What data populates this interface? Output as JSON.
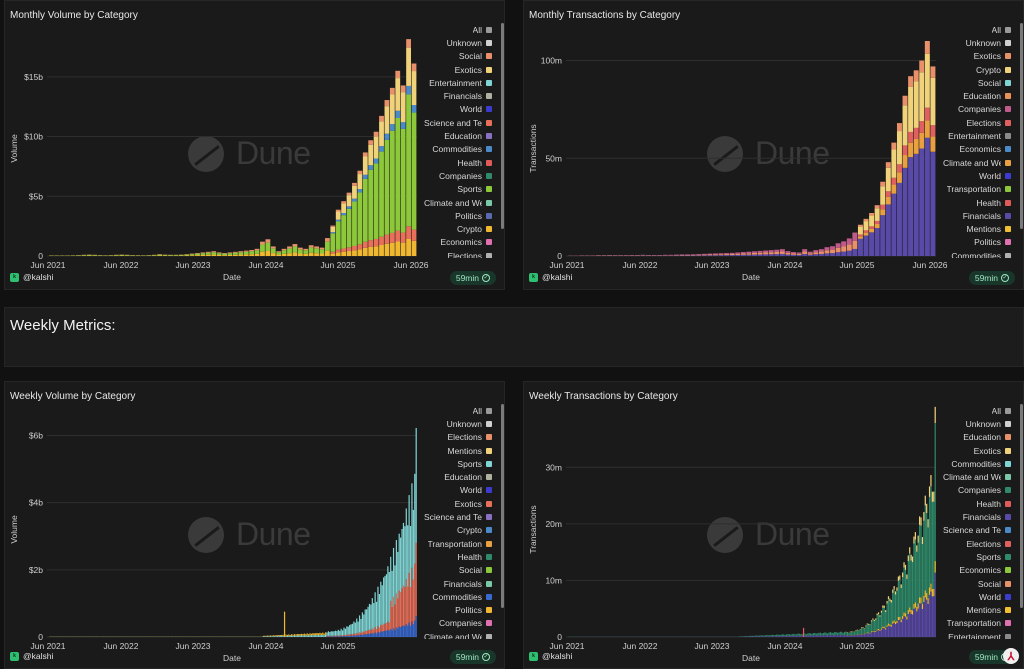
{
  "section": {
    "title": "Weekly Metrics:"
  },
  "common": {
    "user": "@kalshi",
    "freshness": "59min",
    "watermark": "Dune"
  },
  "panels": [
    {
      "id": "p1",
      "title": "Monthly Volume by Category",
      "legend": [
        "All",
        "Unknown",
        "Social",
        "Exotics",
        "Entertainment",
        "Financials",
        "World",
        "Science and Tech",
        "Education",
        "Commodities",
        "Health",
        "Companies",
        "Sports",
        "Climate and Weather",
        "Politics",
        "Crypto",
        "Economics",
        "Elections"
      ],
      "legend_colors": [
        "#9a9a9a",
        "#d0d0d0",
        "#e8906a",
        "#f0d27a",
        "#7fd4d4",
        "#b0b0a0",
        "#3b3bd0",
        "#e8705a",
        "#8a70c0",
        "#4a8ac8",
        "#e05a5a",
        "#2e8a6a",
        "#8cc83a",
        "#7ac8a8",
        "#5a6ab0",
        "#f0b830",
        "#e070b0",
        "#b0b0b0"
      ]
    },
    {
      "id": "p2",
      "title": "Monthly Transactions by Category",
      "legend": [
        "All",
        "Unknown",
        "Exotics",
        "Crypto",
        "Social",
        "Education",
        "Companies",
        "Elections",
        "Entertainment",
        "Economics",
        "Climate and Weather",
        "World",
        "Transportation",
        "Health",
        "Financials",
        "Mentions",
        "Politics",
        "Commodities"
      ],
      "legend_colors": [
        "#9a9a9a",
        "#d0d0d0",
        "#e8906a",
        "#f0d27a",
        "#7fd4d4",
        "#e8905a",
        "#c05a8a",
        "#e06060",
        "#8a8a8a",
        "#4a8ac8",
        "#e8a040",
        "#3b3bd0",
        "#8cc83a",
        "#e05a5a",
        "#5a4aa8",
        "#f0c030",
        "#e070b0",
        "#b0b0b0"
      ]
    },
    {
      "id": "p3",
      "title": "Weekly Volume by Category",
      "legend": [
        "All",
        "Unknown",
        "Elections",
        "Mentions",
        "Sports",
        "Education",
        "World",
        "Exotics",
        "Science and Tech",
        "Crypto",
        "Transportation",
        "Health",
        "Social",
        "Financials",
        "Commodities",
        "Politics",
        "Companies",
        "Climate and Weather"
      ],
      "legend_colors": [
        "#9a9a9a",
        "#d0d0d0",
        "#e8906a",
        "#f0d27a",
        "#7fd4d4",
        "#b0b0a0",
        "#3b3bd0",
        "#e8705a",
        "#8a70c0",
        "#4a8ac8",
        "#e8a040",
        "#2e8a6a",
        "#8cc83a",
        "#7ac8a8",
        "#3a6ad0",
        "#f0b830",
        "#e070b0",
        "#b0b0b0"
      ]
    },
    {
      "id": "p4",
      "title": "Weekly Transactions by Category",
      "legend": [
        "All",
        "Unknown",
        "Education",
        "Exotics",
        "Commodities",
        "Climate and Weather",
        "Companies",
        "Health",
        "Financials",
        "Science and Tech",
        "Elections",
        "Sports",
        "Economics",
        "Social",
        "World",
        "Mentions",
        "Transportation",
        "Entertainment"
      ],
      "legend_colors": [
        "#9a9a9a",
        "#d0d0d0",
        "#e8906a",
        "#f0d27a",
        "#7fd4d4",
        "#7ac8a8",
        "#2e8a6a",
        "#e05a5a",
        "#5a4aa8",
        "#4a8ac8",
        "#e06060",
        "#2e8a6a",
        "#8cc83a",
        "#e8906a",
        "#3b3bd0",
        "#f0c030",
        "#e070b0",
        "#8a8a8a"
      ]
    }
  ],
  "chart_data": [
    {
      "type": "bar",
      "title": "Monthly Volume by Category",
      "xlabel": "Date",
      "ylabel": "Volume",
      "x_ticks": [
        "Jun 2021",
        "Jun 2022",
        "Jun 2023",
        "Jun 2024",
        "Jun 2025",
        "Jun 2026"
      ],
      "y_ticks": [
        "0",
        "$5b",
        "$10b",
        "$15b"
      ],
      "ylim": [
        0,
        18000000000
      ],
      "x_period": [
        "2021-06",
        "2026-04"
      ],
      "totals_b": [
        0.05,
        0.05,
        0.05,
        0.05,
        0.06,
        0.08,
        0.1,
        0.12,
        0.1,
        0.08,
        0.06,
        0.08,
        0.1,
        0.12,
        0.1,
        0.08,
        0.07,
        0.06,
        0.08,
        0.1,
        0.15,
        0.12,
        0.1,
        0.1,
        0.12,
        0.15,
        0.2,
        0.25,
        0.3,
        0.35,
        0.4,
        0.3,
        0.25,
        0.3,
        0.35,
        0.4,
        0.45,
        0.5,
        0.6,
        1.2,
        1.4,
        0.8,
        0.4,
        0.6,
        0.8,
        1.0,
        0.7,
        0.6,
        0.9,
        0.8,
        0.7,
        1.5,
        2.5,
        3.8,
        4.5,
        5.2,
        6.0,
        7.0,
        8.5,
        9.5,
        10.2,
        11.5,
        12.8,
        13.8,
        15.2,
        14.0,
        17.8,
        15.8
      ],
      "top_series_share": 0.62
    },
    {
      "type": "bar",
      "title": "Monthly Transactions by Category",
      "xlabel": "Date",
      "ylabel": "Transactions",
      "x_ticks": [
        "Jun 2021",
        "Jun 2022",
        "Jun 2023",
        "Jun 2024",
        "Jun 2025",
        "Jun 2026"
      ],
      "y_ticks": [
        "0",
        "50m",
        "100m"
      ],
      "ylim": [
        0,
        110000000
      ],
      "x_period": [
        "2021-06",
        "2026-04"
      ],
      "totals_m": [
        0.2,
        0.2,
        0.3,
        0.3,
        0.3,
        0.4,
        0.4,
        0.5,
        0.4,
        0.4,
        0.4,
        0.5,
        0.5,
        0.6,
        0.5,
        0.5,
        0.5,
        0.6,
        0.6,
        0.7,
        0.8,
        0.8,
        0.9,
        1.0,
        1.1,
        1.2,
        1.3,
        1.4,
        1.5,
        1.6,
        1.8,
        2.0,
        2.2,
        2.4,
        2.6,
        2.8,
        3.0,
        3.2,
        3.5,
        2.5,
        2.0,
        1.8,
        3.5,
        2.2,
        3.0,
        3.5,
        4.5,
        5.0,
        6.5,
        7.5,
        9.0,
        12.0,
        16.0,
        19.0,
        22.0,
        26.0,
        38.0,
        48.0,
        58.0,
        68.0,
        82.0,
        92.0,
        95.0,
        100.0,
        110.0,
        97.0
      ],
      "bottom_series_share": 0.55
    },
    {
      "type": "bar",
      "title": "Weekly Volume by Category",
      "xlabel": "Date",
      "ylabel": "Volume",
      "x_ticks": [
        "Jun 2021",
        "Jun 2022",
        "Jun 2023",
        "Jun 2024",
        "Jun 2025"
      ],
      "y_ticks": [
        "0",
        "$2b",
        "$4b",
        "$6b"
      ],
      "ylim": [
        0,
        6400000000
      ],
      "x_period": [
        "2021-06",
        "2026-04"
      ],
      "peak_b": 6.3
    },
    {
      "type": "bar",
      "title": "Weekly Transactions by Category",
      "xlabel": "Date",
      "ylabel": "Transactions",
      "x_ticks": [
        "Jun 2021",
        "Jun 2022",
        "Jun 2023",
        "Jun 2024",
        "Jun 2025"
      ],
      "y_ticks": [
        "0",
        "10m",
        "20m",
        "30m"
      ],
      "ylim": [
        0,
        38000000
      ],
      "x_period": [
        "2021-06",
        "2026-04"
      ],
      "peak_m": 36
    }
  ]
}
